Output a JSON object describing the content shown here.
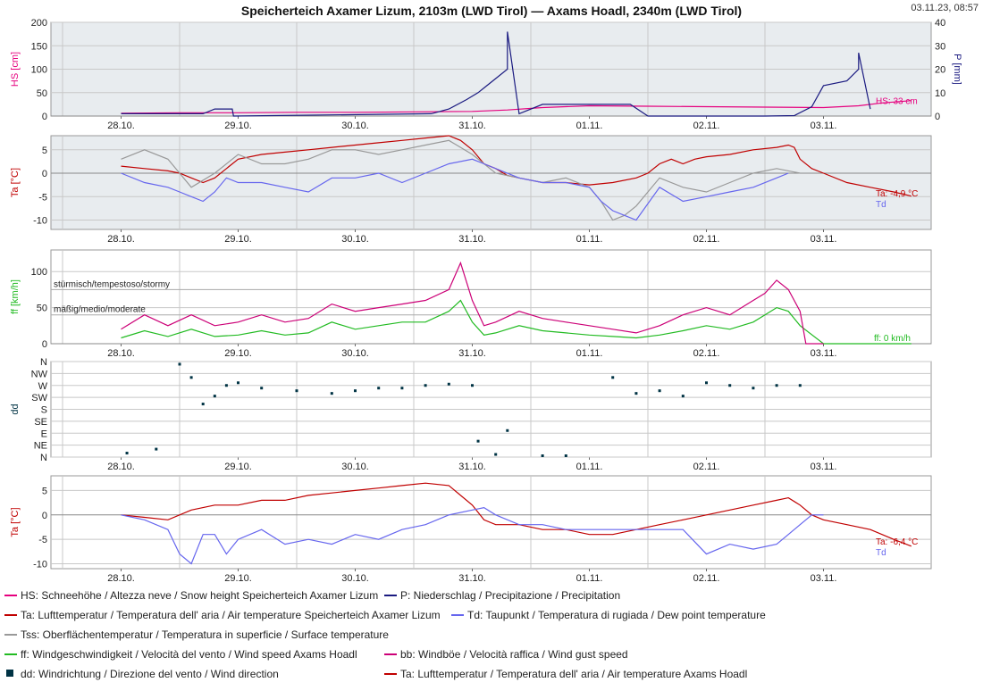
{
  "header": {
    "title": "Speicherteich Axamer Lizum, 2103m (LWD Tirol) — Axams Hoadl, 2340m (LWD Tirol)",
    "timestamp": "03.11.23, 08:57"
  },
  "x_axis": {
    "categories": [
      "28.10.",
      "29.10.",
      "30.10.",
      "31.10.",
      "01.11.",
      "02.11.",
      "03.11."
    ],
    "grid": true
  },
  "colors": {
    "hs": "#e6007e",
    "precip": "#1a1a80",
    "air": "#c00000",
    "dew": "#6666ee",
    "surface": "#999999",
    "wind": "#22bb22",
    "gust": "#cc0077",
    "dir": "#003344"
  },
  "chart_data": [
    {
      "id": "panel1",
      "type": "line",
      "ylabel": "HS [cm]",
      "ylabel2": "P [mm]",
      "ylim": [
        0,
        200
      ],
      "yticks": [
        0,
        50,
        100,
        150,
        200
      ],
      "ylim2": [
        0,
        40
      ],
      "yticks2": [
        0,
        10,
        20,
        30,
        40
      ],
      "series": [
        {
          "name": "HS",
          "axis": "left",
          "color": "#e6007e",
          "x": [
            0,
            0.5,
            1,
            1.5,
            2,
            2.5,
            3,
            3.3,
            3.6,
            4,
            4.5,
            5,
            5.5,
            6,
            6.3,
            6.5,
            6.75
          ],
          "y": [
            6,
            7,
            7,
            8,
            8,
            9,
            10,
            13,
            18,
            22,
            21,
            20,
            19,
            18,
            22,
            28,
            33
          ]
        },
        {
          "name": "P",
          "axis": "right",
          "color": "#1a1a80",
          "x": [
            0,
            0.7,
            0.8,
            0.81,
            0.95,
            0.96,
            2.65,
            2.8,
            2.95,
            3.05,
            3.1,
            3.2,
            3.3,
            3.3,
            3.4,
            3.6,
            4.0,
            4.35,
            4.5,
            5.5,
            5.75,
            5.9,
            6.0,
            6.2,
            6.3,
            6.3,
            6.4
          ],
          "y": [
            1,
            1,
            3,
            3,
            3,
            0,
            1,
            3,
            7,
            10,
            12,
            16,
            20,
            36,
            1,
            5,
            5,
            5,
            0,
            0,
            0.2,
            4,
            13,
            15,
            20,
            27,
            3
          ]
        }
      ],
      "labels": {
        "hs_value": "HS: 33 cm"
      }
    },
    {
      "id": "panel2",
      "type": "line",
      "ylabel": "Ta [°C]",
      "ylim": [
        -12,
        8
      ],
      "yticks": [
        -10,
        -5,
        0,
        5
      ],
      "series": [
        {
          "name": "Ta",
          "color": "#c00000",
          "x": [
            0,
            0.2,
            0.4,
            0.5,
            0.6,
            0.7,
            0.8,
            0.9,
            1.0,
            1.2,
            1.4,
            1.6,
            1.8,
            2.0,
            2.2,
            2.4,
            2.6,
            2.8,
            2.9,
            3.0,
            3.1,
            3.2,
            3.3,
            3.4,
            3.6,
            3.8,
            4.0,
            4.2,
            4.4,
            4.5,
            4.6,
            4.7,
            4.8,
            4.9,
            5.0,
            5.2,
            5.4,
            5.6,
            5.7,
            5.75,
            5.8,
            5.9,
            6.0,
            6.2,
            6.4,
            6.6,
            6.75
          ],
          "y": [
            1.5,
            1,
            0.5,
            0,
            -1,
            -2,
            -1,
            1,
            3,
            4,
            4.5,
            5,
            5.5,
            6,
            6.5,
            7,
            7.5,
            8,
            7,
            5,
            2,
            1,
            -0.5,
            -1,
            -2,
            -2,
            -2.5,
            -2,
            -1,
            0,
            2,
            3,
            2,
            3,
            3.5,
            4,
            5,
            5.5,
            6,
            5.5,
            3,
            1,
            0,
            -2,
            -3,
            -4,
            -4.9
          ]
        },
        {
          "name": "Tss",
          "color": "#999999",
          "x": [
            0,
            0.2,
            0.4,
            0.5,
            0.6,
            0.8,
            1.0,
            1.2,
            1.4,
            1.6,
            1.8,
            2.0,
            2.2,
            2.4,
            2.6,
            2.8,
            3.0,
            3.2,
            3.4,
            3.6,
            3.8,
            4.0,
            4.1,
            4.2,
            4.3,
            4.4,
            4.6,
            4.8,
            5.0,
            5.2,
            5.4,
            5.6,
            5.8
          ],
          "y": [
            3,
            5,
            3,
            0,
            -3,
            0,
            4,
            2,
            2,
            3,
            5,
            5,
            4,
            5,
            6,
            7,
            4,
            0,
            -1,
            -2,
            -1,
            -3,
            -6,
            -10,
            -9,
            -7,
            -1,
            -3,
            -4,
            -2,
            0,
            1,
            0
          ]
        },
        {
          "name": "Td",
          "color": "#6666ee",
          "x": [
            0,
            0.2,
            0.4,
            0.5,
            0.6,
            0.7,
            0.8,
            0.9,
            1.0,
            1.2,
            1.4,
            1.6,
            1.8,
            2.0,
            2.2,
            2.4,
            2.6,
            2.8,
            3.0,
            3.1,
            3.2,
            3.4,
            3.6,
            3.8,
            4.0,
            4.1,
            4.2,
            4.3,
            4.4,
            4.6,
            4.8,
            5.0,
            5.2,
            5.4,
            5.6,
            5.7
          ],
          "y": [
            0,
            -2,
            -3,
            -4,
            -5,
            -6,
            -4,
            -1,
            -2,
            -2,
            -3,
            -4,
            -1,
            -1,
            0,
            -2,
            0,
            2,
            3,
            2,
            1,
            -1,
            -2,
            -2,
            -3,
            -6,
            -8,
            -9,
            -10,
            -3,
            -6,
            -5,
            -4,
            -3,
            -1,
            0
          ]
        }
      ],
      "labels": {
        "ta_value": "Ta: -4,9 °C",
        "td_label": "Td"
      }
    },
    {
      "id": "panel3",
      "type": "line",
      "ylabel": "ff [km/h]",
      "ylim": [
        0,
        130
      ],
      "yticks": [
        0,
        50,
        100
      ],
      "thresholds": [
        {
          "value": 75,
          "label": "stürmisch/tempestoso/stormy"
        },
        {
          "value": 40,
          "label": "mäßig/medio/moderate"
        }
      ],
      "series": [
        {
          "name": "ff",
          "color": "#22bb22",
          "x": [
            0,
            0.2,
            0.4,
            0.6,
            0.8,
            1.0,
            1.2,
            1.4,
            1.6,
            1.8,
            2.0,
            2.2,
            2.4,
            2.6,
            2.8,
            2.9,
            3.0,
            3.1,
            3.2,
            3.4,
            3.6,
            3.8,
            4.0,
            4.2,
            4.4,
            4.6,
            4.8,
            5.0,
            5.2,
            5.4,
            5.5,
            5.6,
            5.7,
            5.8,
            6.0,
            6.75
          ],
          "y": [
            8,
            18,
            10,
            20,
            10,
            12,
            18,
            12,
            15,
            30,
            20,
            25,
            30,
            30,
            45,
            60,
            30,
            12,
            15,
            25,
            18,
            15,
            12,
            10,
            8,
            12,
            18,
            25,
            20,
            30,
            40,
            50,
            45,
            25,
            0,
            0
          ]
        },
        {
          "name": "bb",
          "color": "#cc0077",
          "x": [
            0,
            0.2,
            0.4,
            0.6,
            0.8,
            1.0,
            1.2,
            1.4,
            1.6,
            1.8,
            2.0,
            2.2,
            2.4,
            2.6,
            2.8,
            2.9,
            3.0,
            3.1,
            3.2,
            3.4,
            3.6,
            3.8,
            4.0,
            4.2,
            4.4,
            4.6,
            4.8,
            5.0,
            5.2,
            5.4,
            5.5,
            5.6,
            5.7,
            5.8,
            5.85,
            6.0
          ],
          "y": [
            20,
            40,
            25,
            40,
            25,
            30,
            40,
            30,
            35,
            55,
            45,
            50,
            55,
            60,
            75,
            112,
            60,
            25,
            30,
            45,
            35,
            30,
            25,
            20,
            15,
            25,
            40,
            50,
            40,
            60,
            70,
            88,
            75,
            45,
            0,
            0
          ]
        }
      ],
      "labels": {
        "ff_value": "ff: 0 km/h"
      }
    },
    {
      "id": "panel4",
      "type": "scatter",
      "ylabel": "dd",
      "ylim": [
        0,
        360
      ],
      "ytick_labels": [
        "N",
        "NE",
        "E",
        "SE",
        "S",
        "SW",
        "W",
        "NW",
        "N"
      ],
      "series": [
        {
          "name": "dd",
          "color": "#003344",
          "x": [
            0.05,
            0.3,
            0.5,
            0.6,
            0.7,
            0.8,
            0.9,
            1.0,
            1.2,
            1.5,
            1.8,
            2.0,
            2.2,
            2.4,
            2.6,
            2.8,
            3.0,
            3.05,
            3.2,
            3.3,
            3.6,
            3.8,
            4.2,
            4.4,
            4.6,
            4.8,
            5.0,
            5.2,
            5.4,
            5.6,
            5.8
          ],
          "y": [
            15,
            30,
            350,
            300,
            200,
            230,
            270,
            280,
            260,
            250,
            240,
            250,
            260,
            260,
            270,
            275,
            270,
            60,
            10,
            100,
            5,
            5,
            300,
            240,
            250,
            230,
            280,
            270,
            260,
            270,
            270
          ]
        }
      ]
    },
    {
      "id": "panel5",
      "type": "line",
      "ylabel": "Ta [°C]",
      "ylim": [
        -11,
        8
      ],
      "yticks": [
        -10,
        -5,
        0,
        5
      ],
      "series": [
        {
          "name": "Ta",
          "color": "#c00000",
          "x": [
            0,
            0.2,
            0.4,
            0.6,
            0.8,
            1.0,
            1.2,
            1.4,
            1.6,
            1.8,
            2.0,
            2.2,
            2.4,
            2.6,
            2.8,
            3.0,
            3.1,
            3.2,
            3.4,
            3.6,
            3.8,
            4.0,
            4.2,
            4.4,
            4.6,
            4.8,
            5.0,
            5.2,
            5.4,
            5.6,
            5.7,
            5.8,
            5.9,
            6.0,
            6.2,
            6.4,
            6.6,
            6.75
          ],
          "y": [
            0,
            -0.5,
            -1,
            1,
            2,
            2,
            3,
            3,
            4,
            4.5,
            5,
            5.5,
            6,
            6.5,
            6,
            2,
            -1,
            -2,
            -2,
            -3,
            -3,
            -4,
            -4,
            -3,
            -2,
            -1,
            0,
            1,
            2,
            3,
            3.5,
            2,
            0,
            -1,
            -2,
            -3,
            -5,
            -6.4
          ]
        },
        {
          "name": "Td",
          "color": "#6666ee",
          "x": [
            0,
            0.2,
            0.4,
            0.5,
            0.6,
            0.7,
            0.8,
            0.9,
            1.0,
            1.2,
            1.4,
            1.6,
            1.8,
            2.0,
            2.2,
            2.4,
            2.6,
            2.8,
            3.0,
            3.1,
            3.2,
            3.4,
            3.6,
            3.8,
            4.0,
            4.2,
            4.4,
            4.6,
            4.8,
            5.0,
            5.2,
            5.4,
            5.6,
            5.7,
            5.8,
            5.9,
            6.0
          ],
          "y": [
            0,
            -1,
            -3,
            -8,
            -10,
            -4,
            -4,
            -8,
            -5,
            -3,
            -6,
            -5,
            -6,
            -4,
            -5,
            -3,
            -2,
            0,
            1,
            1.5,
            0,
            -2,
            -2,
            -3,
            -3,
            -3,
            -3,
            -3,
            -3,
            -8,
            -6,
            -7,
            -6,
            -4,
            -2,
            0,
            0
          ]
        }
      ],
      "labels": {
        "ta_value": "Ta: -6,4 °C",
        "td_label": "Td"
      }
    }
  ],
  "legend": {
    "items": [
      {
        "label": "HS: Schneehöhe / Altezza neve / Snow height  Speicherteich Axamer Lizum",
        "color": "#e6007e",
        "marker": "line"
      },
      {
        "label": "P: Niederschlag / Precipitazione / Precipitation",
        "color": "#1a1a80",
        "marker": "line"
      },
      {
        "label": "Ta: Lufttemperatur / Temperatura dell' aria / Air temperature  Speicherteich Axamer Lizum",
        "color": "#c00000",
        "marker": "line"
      },
      {
        "label": "Td: Taupunkt / Temperatura di rugiada / Dew point temperature",
        "color": "#6666ee",
        "marker": "line"
      },
      {
        "label": "Tss: Oberflächentemperatur / Temperatura in superficie / Surface temperature",
        "color": "#999999",
        "marker": "line"
      },
      {
        "label": "ff: Windgeschwindigkeit / Velocità del vento / Wind speed  Axams Hoadl",
        "color": "#22bb22",
        "marker": "line"
      },
      {
        "label": "bb: Windböe / Velocità raffica / Wind gust speed",
        "color": "#cc0077",
        "marker": "line"
      },
      {
        "label": "dd: Windrichtung / Direzione del vento / Wind direction",
        "color": "#003344",
        "marker": "square"
      },
      {
        "label": "Ta: Lufttemperatur / Temperatura dell' aria / Air temperature  Axams Hoadl",
        "color": "#c00000",
        "marker": "line"
      }
    ]
  }
}
